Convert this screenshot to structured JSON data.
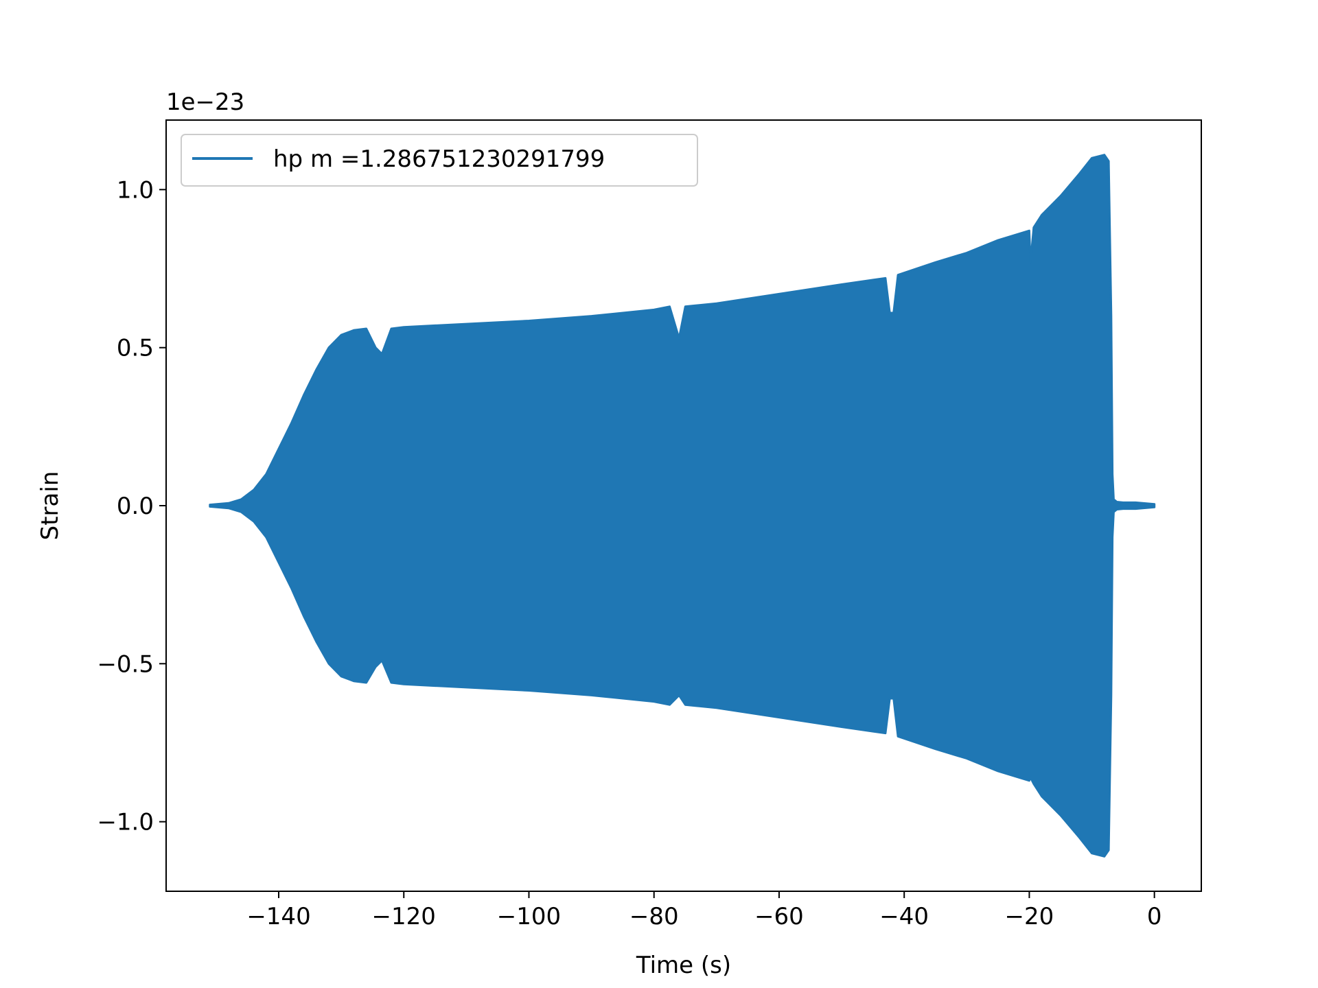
{
  "chart_data": {
    "type": "line",
    "title": "",
    "xlabel": "Time (s)",
    "ylabel": "Strain",
    "y_offset_label": "1e−23",
    "y_scale_factor": 1e-23,
    "xlim": [
      -158,
      7.5
    ],
    "ylim": [
      -1.22,
      1.22
    ],
    "x_ticks": [
      -140,
      -120,
      -100,
      -80,
      -60,
      -40,
      -20,
      0
    ],
    "x_tick_labels": [
      "−140",
      "−120",
      "−100",
      "−80",
      "−60",
      "−40",
      "−20",
      "0"
    ],
    "y_ticks": [
      -1.0,
      -0.5,
      0.0,
      0.5,
      1.0
    ],
    "y_tick_labels": [
      "−1.0",
      "−0.5",
      "0.0",
      "0.5",
      "1.0"
    ],
    "grid": false,
    "legend_position": "upper-left",
    "series": [
      {
        "name": "hp m =1.286751230291799",
        "color": "#1f77b4",
        "envelope": {
          "x": [
            -151,
            -148,
            -146,
            -144,
            -142,
            -140,
            -138,
            -136,
            -134,
            -132,
            -130,
            -128,
            -126,
            -124.5,
            -123.5,
            -122,
            -120,
            -110,
            -100,
            -90,
            -80,
            -77.5,
            -76,
            -75,
            -70,
            -60,
            -50,
            -43,
            -42.3,
            -41.7,
            -41,
            -35,
            -30,
            -25,
            -20,
            -19.8,
            -19.3,
            -18,
            -15,
            -12,
            -10,
            -8,
            -7.3,
            -6.9,
            -6.7,
            -6.5,
            -6,
            -5,
            -3,
            0
          ],
          "upper": [
            0.003,
            0.008,
            0.02,
            0.05,
            0.1,
            0.18,
            0.26,
            0.35,
            0.43,
            0.5,
            0.54,
            0.555,
            0.56,
            0.5,
            0.48,
            0.56,
            0.565,
            0.575,
            0.585,
            0.6,
            0.62,
            0.63,
            0.53,
            0.63,
            0.64,
            0.67,
            0.7,
            0.72,
            0.61,
            0.61,
            0.73,
            0.77,
            0.8,
            0.84,
            0.87,
            0.77,
            0.88,
            0.92,
            0.98,
            1.05,
            1.1,
            1.11,
            1.09,
            0.6,
            0.1,
            0.02,
            0.012,
            0.01,
            0.01,
            0.005
          ],
          "lower": [
            -0.003,
            -0.008,
            -0.02,
            -0.05,
            -0.1,
            -0.18,
            -0.26,
            -0.35,
            -0.43,
            -0.5,
            -0.54,
            -0.555,
            -0.56,
            -0.51,
            -0.49,
            -0.56,
            -0.565,
            -0.575,
            -0.585,
            -0.6,
            -0.62,
            -0.63,
            -0.6,
            -0.63,
            -0.64,
            -0.67,
            -0.7,
            -0.72,
            -0.61,
            -0.61,
            -0.73,
            -0.77,
            -0.8,
            -0.84,
            -0.87,
            -0.86,
            -0.88,
            -0.92,
            -0.98,
            -1.05,
            -1.1,
            -1.11,
            -1.09,
            -0.6,
            -0.1,
            -0.02,
            -0.012,
            -0.01,
            -0.01,
            -0.005
          ]
        }
      }
    ]
  }
}
